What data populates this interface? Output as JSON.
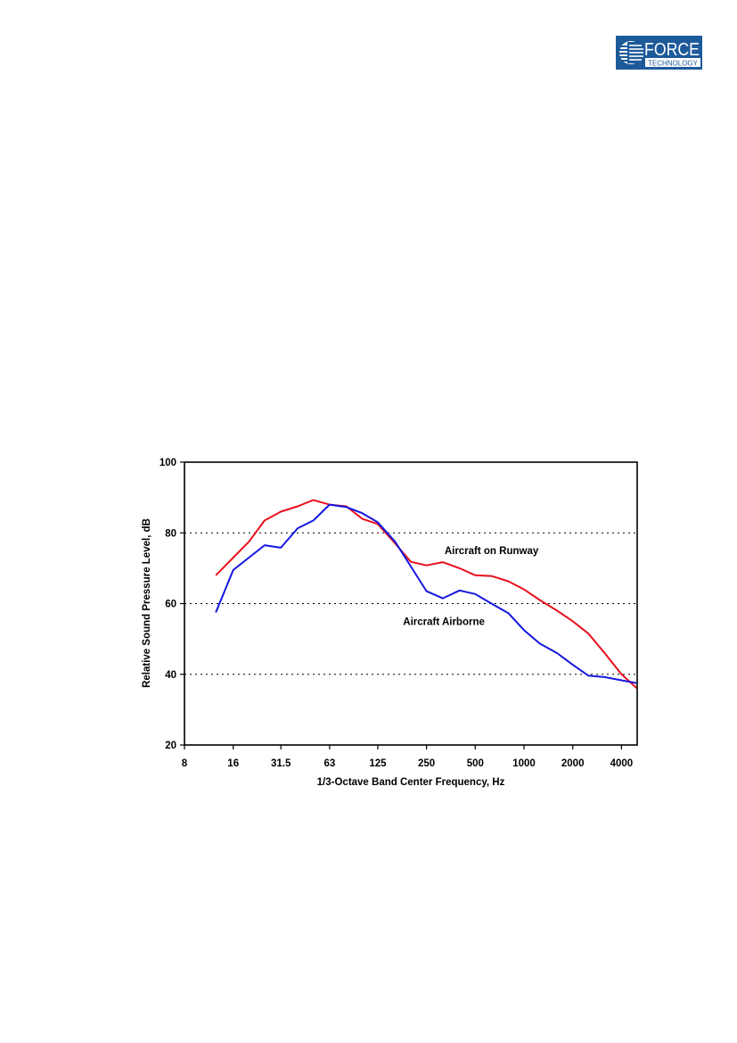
{
  "logo": {
    "line1": "FORCE",
    "line2": "TECHNOLOGY"
  },
  "chart_data": {
    "type": "line",
    "xscale": "log",
    "xlim": [
      8,
      5000
    ],
    "ylim": [
      20,
      100
    ],
    "xticks": [
      8,
      16,
      31.5,
      63,
      125,
      250,
      500,
      1000,
      2000,
      4000
    ],
    "xtick_labels": [
      "8",
      "16",
      "31.5",
      "63",
      "125",
      "250",
      "500",
      "1000",
      "2000",
      "4000"
    ],
    "yticks": [
      20,
      40,
      60,
      80,
      100
    ],
    "ytick_labels": [
      "20",
      "40",
      "60",
      "80",
      "100"
    ],
    "xlabel": "1/3-Octave Band Center Frequency, Hz",
    "ylabel": "Relative Sound Pressure Level, dB",
    "grid": "dotted horizontal at 40, 60, 80",
    "annotations": [
      {
        "text": "Aircraft on Runway",
        "x": 630,
        "y": 75
      },
      {
        "text": "Aircraft Airborne",
        "x": 320,
        "y": 55
      }
    ],
    "series": [
      {
        "color": "#e8101c",
        "x": [
          12.5,
          16,
          20,
          25,
          31.5,
          40,
          50,
          63,
          80,
          100,
          125,
          160,
          200,
          250,
          315,
          400,
          500,
          630,
          800,
          1000,
          1250,
          1600,
          2000,
          2500,
          3150,
          4000,
          5000
        ],
        "y": [
          68,
          73,
          77.5,
          83.5,
          86,
          87.5,
          89.3,
          88,
          87.5,
          84,
          82.5,
          77,
          71.8,
          70.8,
          71.7,
          70,
          68,
          67.8,
          66.3,
          64,
          61,
          58,
          55,
          51.5,
          46,
          40,
          36
        ]
      },
      {
        "color": "#1515e0",
        "x": [
          12.5,
          16,
          20,
          25,
          31.5,
          40,
          50,
          63,
          80,
          100,
          125,
          160,
          200,
          250,
          315,
          400,
          500,
          630,
          800,
          1000,
          1250,
          1600,
          2000,
          2500,
          3150,
          4000,
          5000
        ],
        "y": [
          57.5,
          69.5,
          73,
          76.5,
          75.8,
          81.3,
          83.5,
          88,
          87.3,
          85.6,
          83,
          77.5,
          70.5,
          63.5,
          61.5,
          63.7,
          62.7,
          60,
          57.3,
          52.5,
          48.7,
          46,
          42.7,
          39.6,
          39.2,
          38.3,
          37.5
        ]
      }
    ]
  }
}
